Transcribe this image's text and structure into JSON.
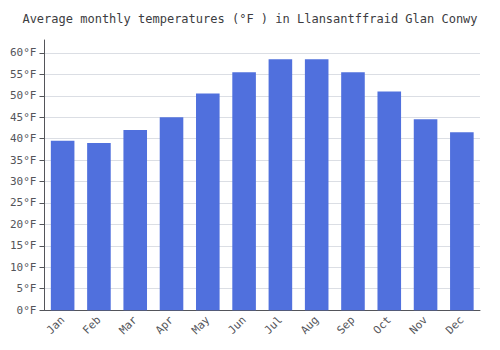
{
  "chart_data": {
    "type": "bar",
    "title": "Average monthly temperatures (°F ) in Llansantffraid Glan Conwy",
    "categories": [
      "Jan",
      "Feb",
      "Mar",
      "Apr",
      "May",
      "Jun",
      "Jul",
      "Aug",
      "Sep",
      "Oct",
      "Nov",
      "Dec"
    ],
    "values": [
      39.5,
      39.0,
      42.0,
      45.0,
      50.5,
      55.5,
      58.5,
      58.5,
      55.5,
      51.0,
      44.5,
      41.5
    ],
    "ylim": [
      0,
      63
    ],
    "yticks": [
      {
        "value": 0,
        "label": "0°F"
      },
      {
        "value": 5,
        "label": "5°F"
      },
      {
        "value": 10,
        "label": "10°F"
      },
      {
        "value": 15,
        "label": "15°F"
      },
      {
        "value": 20,
        "label": "20°F"
      },
      {
        "value": 25,
        "label": "25°F"
      },
      {
        "value": 30,
        "label": "30°F"
      },
      {
        "value": 35,
        "label": "35°F"
      },
      {
        "value": 40,
        "label": "40°F"
      },
      {
        "value": 45,
        "label": "45°F"
      },
      {
        "value": 50,
        "label": "50°F"
      },
      {
        "value": 55,
        "label": "55°F"
      },
      {
        "value": 60,
        "label": "60°F"
      }
    ],
    "grid": true
  }
}
